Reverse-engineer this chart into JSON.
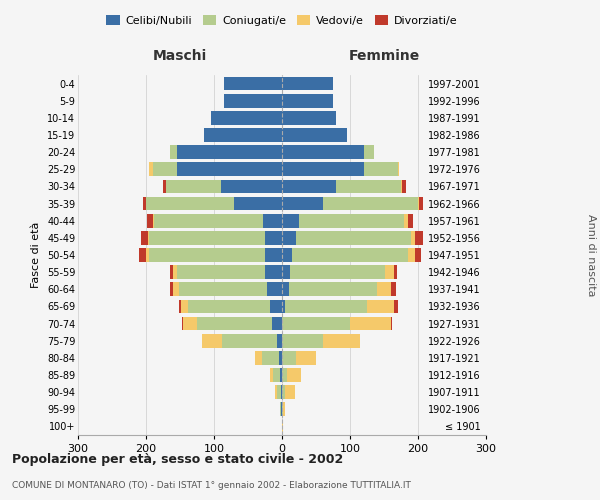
{
  "age_groups": [
    "100+",
    "95-99",
    "90-94",
    "85-89",
    "80-84",
    "75-79",
    "70-74",
    "65-69",
    "60-64",
    "55-59",
    "50-54",
    "45-49",
    "40-44",
    "35-39",
    "30-34",
    "25-29",
    "20-24",
    "15-19",
    "10-14",
    "5-9",
    "0-4"
  ],
  "birth_years": [
    "≤ 1901",
    "1902-1906",
    "1907-1911",
    "1912-1916",
    "1917-1921",
    "1922-1926",
    "1927-1931",
    "1932-1936",
    "1937-1941",
    "1942-1946",
    "1947-1951",
    "1952-1956",
    "1957-1961",
    "1962-1966",
    "1967-1971",
    "1972-1976",
    "1977-1981",
    "1982-1986",
    "1987-1991",
    "1992-1996",
    "1997-2001"
  ],
  "maschi_celibi": [
    0,
    1,
    2,
    3,
    4,
    8,
    15,
    18,
    22,
    25,
    25,
    25,
    28,
    70,
    90,
    155,
    155,
    115,
    105,
    85,
    85
  ],
  "maschi_coniugati": [
    0,
    2,
    5,
    10,
    25,
    80,
    110,
    120,
    130,
    130,
    170,
    170,
    160,
    130,
    80,
    35,
    10,
    0,
    0,
    0,
    0
  ],
  "maschi_vedovi": [
    0,
    0,
    3,
    5,
    10,
    30,
    20,
    10,
    8,
    5,
    5,
    2,
    2,
    0,
    0,
    5,
    0,
    0,
    0,
    0,
    0
  ],
  "maschi_divorziati": [
    0,
    0,
    0,
    0,
    0,
    0,
    2,
    3,
    5,
    5,
    10,
    10,
    8,
    5,
    5,
    0,
    0,
    0,
    0,
    0,
    0
  ],
  "femmine_celibi": [
    0,
    0,
    0,
    0,
    0,
    0,
    0,
    5,
    10,
    12,
    15,
    20,
    25,
    60,
    80,
    120,
    120,
    95,
    80,
    75,
    75
  ],
  "femmine_coniugati": [
    0,
    1,
    4,
    8,
    20,
    60,
    100,
    120,
    130,
    140,
    170,
    170,
    155,
    140,
    95,
    50,
    15,
    0,
    0,
    0,
    0
  ],
  "femmine_vedovi": [
    1,
    4,
    15,
    20,
    30,
    55,
    60,
    40,
    20,
    12,
    10,
    5,
    5,
    2,
    2,
    2,
    0,
    0,
    0,
    0,
    0
  ],
  "femmine_divorziati": [
    0,
    0,
    0,
    0,
    0,
    0,
    2,
    5,
    8,
    5,
    10,
    12,
    8,
    5,
    5,
    0,
    0,
    0,
    0,
    0,
    0
  ],
  "colors": {
    "celibi": "#3A6EA5",
    "coniugati": "#B5CC8E",
    "vedovi": "#F5C96A",
    "divorziati": "#C0392B"
  },
  "title": "Popolazione per età, sesso e stato civile - 2002",
  "subtitle": "COMUNE DI MONTANARO (TO) - Dati ISTAT 1° gennaio 2002 - Elaborazione TUTTITALIA.IT",
  "xlabel_left": "Maschi",
  "xlabel_right": "Femmine",
  "ylabel_left": "Fasce di età",
  "ylabel_right": "Anni di nascita",
  "xlim": 300,
  "background_color": "#f5f5f5",
  "grid_color": "#cccccc"
}
